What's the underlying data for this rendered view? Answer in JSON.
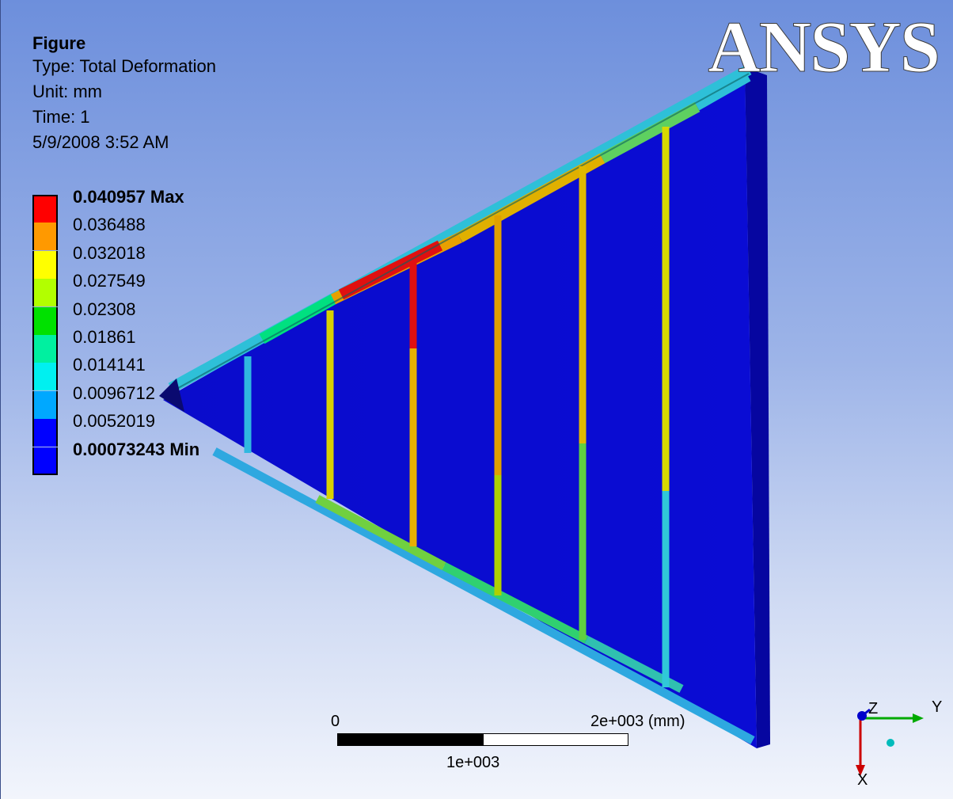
{
  "header": {
    "title": "Figure",
    "type": "Type: Total Deformation",
    "unit": "Unit: mm",
    "time": "Time: 1",
    "date": "5/9/2008 3:52 AM"
  },
  "legend": {
    "items": [
      {
        "label": "0.040957 Max",
        "color": "#ff0000",
        "bold": true
      },
      {
        "label": "0.036488",
        "color": "#ff9900",
        "bold": false
      },
      {
        "label": "0.032018",
        "color": "#ffff00",
        "bold": false
      },
      {
        "label": "0.027549",
        "color": "#b2ff00",
        "bold": false
      },
      {
        "label": "0.02308",
        "color": "#00e100",
        "bold": false
      },
      {
        "label": "0.01861",
        "color": "#00f0a0",
        "bold": false
      },
      {
        "label": "0.014141",
        "color": "#00f0f0",
        "bold": false
      },
      {
        "label": "0.0096712",
        "color": "#00a8ff",
        "bold": false
      },
      {
        "label": "0.0052019",
        "color": "#0000ff",
        "bold": false
      },
      {
        "label": "0.00073243 Min",
        "color": "#0000ff",
        "bold": true
      }
    ]
  },
  "logo": {
    "text": "ANSYS"
  },
  "scale_bar": {
    "start_label": "0",
    "end_label": "2e+003 (mm)",
    "mid_label": "1e+003"
  },
  "triad": {
    "x_label": "X",
    "y_label": "Y",
    "z_label": "Z",
    "x_color": "#cc0000",
    "y_color": "#00aa00",
    "z_color": "#0000cc"
  },
  "colors": {
    "plate": "#0a0ccc",
    "plate_edge": "#0606a0",
    "background_top": "#6d8fdc",
    "background_bottom": "#f2f5fc"
  }
}
